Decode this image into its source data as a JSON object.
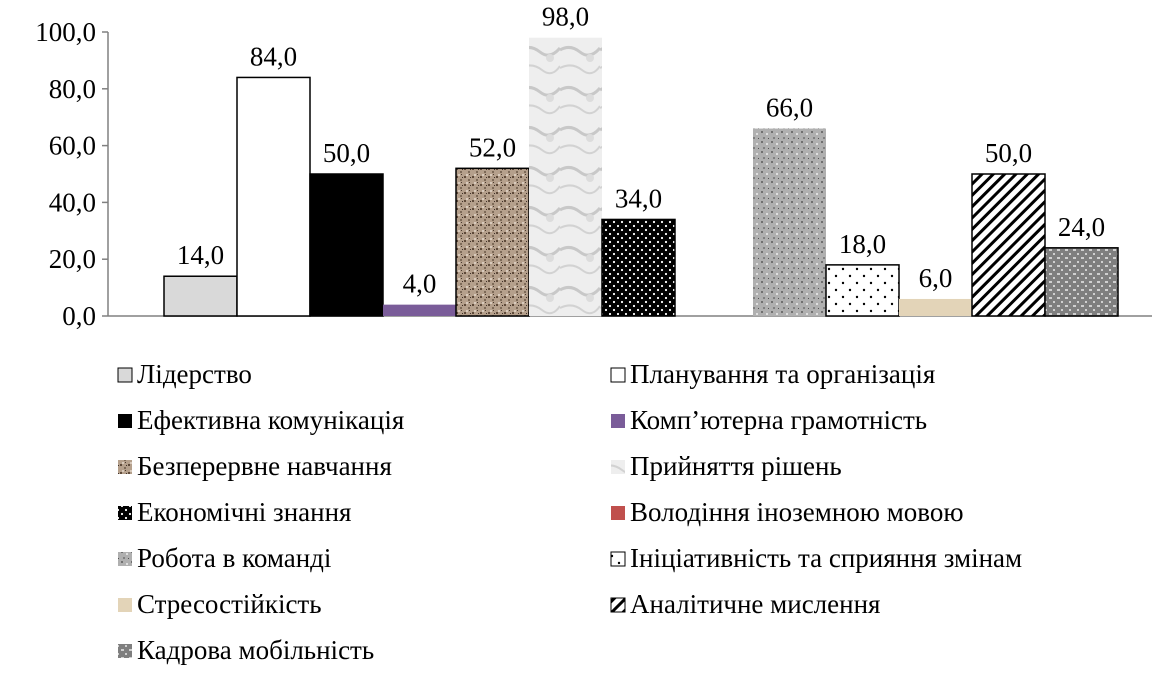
{
  "chart_data": {
    "type": "bar",
    "title": "",
    "xlabel": "",
    "ylabel": "",
    "ylim": [
      0,
      100
    ],
    "yticks": [
      "0,0",
      "20,0",
      "40,0",
      "60,0",
      "80,0",
      "100,0"
    ],
    "ytick_values": [
      0,
      20,
      40,
      60,
      80,
      100
    ],
    "legend_position": "bottom",
    "grid": false,
    "series": [
      {
        "name": "Лідерство",
        "value": 14.0,
        "label": "14,0",
        "color": "#d9d9d9",
        "pattern": "solid-light"
      },
      {
        "name": "Планування та організація",
        "value": 84.0,
        "label": "84,0",
        "color": "#ffffff",
        "pattern": "solid-white"
      },
      {
        "name": "Ефективна комунікація",
        "value": 50.0,
        "label": "50,0",
        "color": "#000000",
        "pattern": "solid-black"
      },
      {
        "name": "Комп’ютерна грамотність",
        "value": 4.0,
        "label": "4,0",
        "color": "#7a5c99",
        "pattern": "solid-purple"
      },
      {
        "name": "Безперервне навчання",
        "value": 52.0,
        "label": "52,0",
        "color": "#a08a78",
        "pattern": "speckle-brown"
      },
      {
        "name": "Прийняття рішень",
        "value": 98.0,
        "label": "98,0",
        "color": "#e6e6e6",
        "pattern": "marble"
      },
      {
        "name": "Економічні знання",
        "value": 34.0,
        "label": "34,0",
        "color": "#000000",
        "pattern": "dots-on-black"
      },
      {
        "name": "Володіння іноземною мовою",
        "value": null,
        "label": "",
        "color": "#c0504d",
        "pattern": "solid-red"
      },
      {
        "name": "Робота в команді",
        "value": 66.0,
        "label": "66,0",
        "color": "#a6a6a6",
        "pattern": "granite"
      },
      {
        "name": "Ініціативність та сприяння змінам",
        "value": 18.0,
        "label": "18,0",
        "color": "#ffffff",
        "pattern": "dots-on-white"
      },
      {
        "name": "Стресостійкість",
        "value": 6.0,
        "label": "6,0",
        "color": "#e3d4b8",
        "pattern": "solid-beige"
      },
      {
        "name": "Аналітичне мислення",
        "value": 50.0,
        "label": "50,0",
        "color": "#ffffff",
        "pattern": "diagonal-stripes"
      },
      {
        "name": "Кадрова мобільність",
        "value": 24.0,
        "label": "24,0",
        "color": "#8c8c8c",
        "pattern": "grid-gray"
      }
    ]
  }
}
